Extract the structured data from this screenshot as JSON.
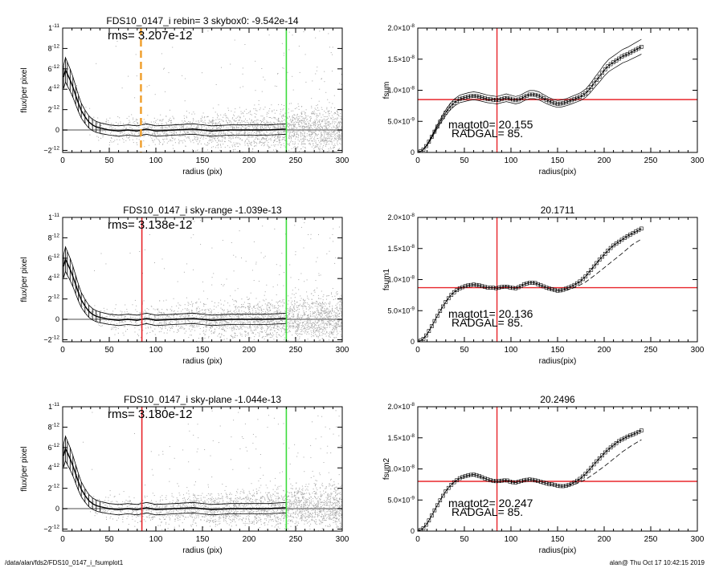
{
  "footer": {
    "path": "/data/alan/fds2/FDS10_0147_i_fsumplot1",
    "stamp": "alan@  Thu Oct 17 10:42:15 2019"
  },
  "colors": {
    "scatter": "#a8a8a8",
    "red": "#e8262b",
    "green": "#3ddc3d",
    "orange": "#f0a030"
  },
  "chart_data": [
    {
      "type": "scatter",
      "title": "FDS10_0147_i rebin= 3    skybox0: -9.542e-14",
      "annotation": "rms= 3.207e-12",
      "xlabel": "radius (pix)",
      "ylabel": "flux/per pixel",
      "xlim": [
        0,
        300
      ],
      "ylim": [
        -2.2e-12,
        1e-11
      ],
      "xticks": [
        0,
        50,
        100,
        150,
        200,
        250,
        300
      ],
      "yticks": [
        {
          "v": -2e-12,
          "m": "−2",
          "e": "-12"
        },
        {
          "v": 0,
          "m": "0",
          "e": ""
        },
        {
          "v": 2e-12,
          "m": "2",
          "e": "-12"
        },
        {
          "v": 4e-12,
          "m": "4",
          "e": "-12"
        },
        {
          "v": 6e-12,
          "m": "6",
          "e": "-12"
        },
        {
          "v": 8e-12,
          "m": "8",
          "e": "-12"
        },
        {
          "v": 1e-11,
          "m": "1",
          "e": "-11"
        }
      ],
      "profile": {
        "r": [
          1,
          3,
          5,
          8,
          11,
          14,
          17,
          20,
          24,
          28,
          32,
          36,
          40,
          45,
          50,
          60,
          70,
          80,
          90,
          100,
          120,
          140,
          160,
          180,
          200,
          220,
          240
        ],
        "f": [
          5.2e-12,
          5.9e-12,
          5.5e-12,
          4.9e-12,
          4.2e-12,
          3.4e-12,
          2.6e-12,
          1.9e-12,
          1.3e-12,
          8e-13,
          5e-13,
          3e-13,
          2e-13,
          1e-13,
          0,
          -1e-13,
          0,
          -1e-13,
          1e-13,
          -1e-13,
          0,
          1e-13,
          -1e-13,
          0,
          0,
          0,
          1e-13
        ]
      },
      "vlines": [
        {
          "x": 84,
          "color": "orange",
          "style": "dashed"
        },
        {
          "x": 240,
          "color": "green",
          "style": "solid"
        }
      ]
    },
    {
      "type": "line",
      "title": "",
      "ylabel": "fsum",
      "xlabel": "radius(pix)",
      "annotation_lines": [
        "magtot0=  20.155",
        "RADGAL=     85."
      ],
      "xlim": [
        0,
        300
      ],
      "ylim": [
        0,
        2e-08
      ],
      "xticks": [
        0,
        50,
        100,
        150,
        200,
        250,
        300
      ],
      "yticks": [
        {
          "v": 0,
          "m": "0",
          "e": ""
        },
        {
          "v": 5e-09,
          "m": "5.0×10",
          "e": "-9"
        },
        {
          "v": 1e-08,
          "m": "1.0×10",
          "e": "-8"
        },
        {
          "v": 1.5e-08,
          "m": "1.5×10",
          "e": "-8"
        },
        {
          "v": 2e-08,
          "m": "2.0×10",
          "e": "-8"
        }
      ],
      "curve": {
        "r": [
          0,
          5,
          10,
          15,
          20,
          25,
          30,
          35,
          40,
          45,
          50,
          55,
          60,
          65,
          70,
          75,
          80,
          85,
          90,
          95,
          100,
          105,
          110,
          115,
          120,
          125,
          130,
          135,
          140,
          145,
          150,
          155,
          160,
          165,
          170,
          175,
          180,
          185,
          190,
          195,
          200,
          205,
          210,
          215,
          220,
          225,
          230,
          235,
          240
        ],
        "f": [
          0,
          3e-10,
          1.2e-09,
          2.5e-09,
          3.9e-09,
          5.2e-09,
          6.4e-09,
          7.4e-09,
          8.1e-09,
          8.6e-09,
          8.8e-09,
          9e-09,
          9.1e-09,
          9e-09,
          8.8e-09,
          8.6e-09,
          8.5e-09,
          8.4e-09,
          8.6e-09,
          8.8e-09,
          8.6e-09,
          8.4e-09,
          8.6e-09,
          9e-09,
          9.3e-09,
          9.3e-09,
          9.1e-09,
          8.7e-09,
          8.3e-09,
          8e-09,
          7.8e-09,
          7.9e-09,
          8.1e-09,
          8.4e-09,
          8.7e-09,
          9e-09,
          9.5e-09,
          1.03e-08,
          1.13e-08,
          1.22e-08,
          1.32e-08,
          1.4e-08,
          1.45e-08,
          1.5e-08,
          1.55e-08,
          1.58e-08,
          1.62e-08,
          1.66e-08,
          1.7e-08
        ]
      },
      "envelope": 0.07,
      "hline": 8.5e-09,
      "vline": 85
    },
    {
      "type": "scatter",
      "title": "FDS10_0147_i sky-range -1.039e-13",
      "annotation": "rms= 3.138e-12",
      "xlabel": "radius (pix)",
      "ylabel": "flux/per pixel",
      "xlim": [
        0,
        300
      ],
      "ylim": [
        -2.2e-12,
        1e-11
      ],
      "xticks": [
        0,
        50,
        100,
        150,
        200,
        250,
        300
      ],
      "yticks": [
        {
          "v": -2e-12,
          "m": "−2",
          "e": "-12"
        },
        {
          "v": 0,
          "m": "0",
          "e": ""
        },
        {
          "v": 2e-12,
          "m": "2",
          "e": "-12"
        },
        {
          "v": 4e-12,
          "m": "4",
          "e": "-12"
        },
        {
          "v": 6e-12,
          "m": "6",
          "e": "-12"
        },
        {
          "v": 8e-12,
          "m": "8",
          "e": "-12"
        },
        {
          "v": 1e-11,
          "m": "1",
          "e": "-11"
        }
      ],
      "profile": {
        "r": [
          1,
          3,
          5,
          8,
          11,
          14,
          17,
          20,
          24,
          28,
          32,
          36,
          40,
          45,
          50,
          60,
          70,
          80,
          90,
          100,
          120,
          140,
          160,
          180,
          200,
          220,
          240
        ],
        "f": [
          5.2e-12,
          5.9e-12,
          5.5e-12,
          4.9e-12,
          4.2e-12,
          3.4e-12,
          2.6e-12,
          1.9e-12,
          1.3e-12,
          8e-13,
          5e-13,
          3e-13,
          2e-13,
          1e-13,
          0,
          -1e-13,
          0,
          -1e-13,
          1e-13,
          -1e-13,
          0,
          1e-13,
          -1e-13,
          0,
          0,
          0,
          1e-13
        ]
      },
      "vlines": [
        {
          "x": 85,
          "color": "red",
          "style": "solid"
        },
        {
          "x": 240,
          "color": "green",
          "style": "solid"
        }
      ]
    },
    {
      "type": "line",
      "title": "20.1711",
      "ylabel": "fsum1",
      "xlabel": "radius(pix)",
      "annotation_lines": [
        "magtot1=  20.136",
        "RADGAL=     85."
      ],
      "xlim": [
        0,
        300
      ],
      "ylim": [
        0,
        2e-08
      ],
      "xticks": [
        0,
        50,
        100,
        150,
        200,
        250,
        300
      ],
      "yticks": [
        {
          "v": 0,
          "m": "0",
          "e": ""
        },
        {
          "v": 5e-09,
          "m": "5.0×10",
          "e": "-9"
        },
        {
          "v": 1e-08,
          "m": "1.0×10",
          "e": "-8"
        },
        {
          "v": 1.5e-08,
          "m": "1.5×10",
          "e": "-8"
        },
        {
          "v": 2e-08,
          "m": "2.0×10",
          "e": "-8"
        }
      ],
      "curve": {
        "r": [
          0,
          5,
          10,
          15,
          20,
          25,
          30,
          35,
          40,
          45,
          50,
          55,
          60,
          65,
          70,
          75,
          80,
          85,
          90,
          95,
          100,
          105,
          110,
          115,
          120,
          125,
          130,
          135,
          140,
          145,
          150,
          155,
          160,
          165,
          170,
          175,
          180,
          185,
          190,
          195,
          200,
          205,
          210,
          215,
          220,
          225,
          230,
          235,
          240
        ],
        "f": [
          0,
          3e-10,
          1.2e-09,
          2.5e-09,
          3.9e-09,
          5.2e-09,
          6.4e-09,
          7.4e-09,
          8.1e-09,
          8.6e-09,
          8.9e-09,
          9.1e-09,
          9.2e-09,
          9.1e-09,
          8.9e-09,
          8.7e-09,
          8.7e-09,
          8.6e-09,
          8.8e-09,
          8.9e-09,
          8.7e-09,
          8.6e-09,
          8.9e-09,
          9.3e-09,
          9.5e-09,
          9.5e-09,
          9.2e-09,
          8.9e-09,
          8.6e-09,
          8.4e-09,
          8.2e-09,
          8.3e-09,
          8.6e-09,
          8.9e-09,
          9.3e-09,
          9.8e-09,
          1.05e-08,
          1.14e-08,
          1.23e-08,
          1.32e-08,
          1.4e-08,
          1.48e-08,
          1.55e-08,
          1.6e-08,
          1.65e-08,
          1.7e-08,
          1.74e-08,
          1.78e-08,
          1.82e-08
        ]
      },
      "dashed": {
        "r": [
          150,
          160,
          170,
          180,
          190,
          200,
          210,
          220,
          230,
          240
        ],
        "f": [
          8.2e-09,
          8.3e-09,
          8.8e-09,
          9.6e-09,
          1.07e-08,
          1.19e-08,
          1.31e-08,
          1.43e-08,
          1.56e-08,
          1.65e-08
        ]
      },
      "hline": 8.7e-09,
      "vline": 85
    },
    {
      "type": "scatter",
      "title": "FDS10_0147_i sky-plane -1.044e-13",
      "annotation": "rms= 3.180e-12",
      "xlabel": "radius (pix)",
      "ylabel": "flux/per pixel",
      "xlim": [
        0,
        300
      ],
      "ylim": [
        -2.2e-12,
        1e-11
      ],
      "xticks": [
        0,
        50,
        100,
        150,
        200,
        250,
        300
      ],
      "yticks": [
        {
          "v": -2e-12,
          "m": "−2",
          "e": "-12"
        },
        {
          "v": 0,
          "m": "0",
          "e": ""
        },
        {
          "v": 2e-12,
          "m": "2",
          "e": "-12"
        },
        {
          "v": 4e-12,
          "m": "4",
          "e": "-12"
        },
        {
          "v": 6e-12,
          "m": "6",
          "e": "-12"
        },
        {
          "v": 8e-12,
          "m": "8",
          "e": "-12"
        },
        {
          "v": 1e-11,
          "m": "1",
          "e": "-11"
        }
      ],
      "profile": {
        "r": [
          1,
          3,
          5,
          8,
          11,
          14,
          17,
          20,
          24,
          28,
          32,
          36,
          40,
          45,
          50,
          60,
          70,
          80,
          90,
          100,
          120,
          140,
          160,
          180,
          200,
          220,
          240
        ],
        "f": [
          5.2e-12,
          5.9e-12,
          5.5e-12,
          4.9e-12,
          4.2e-12,
          3.4e-12,
          2.6e-12,
          1.9e-12,
          1.3e-12,
          8e-13,
          5e-13,
          3e-13,
          2e-13,
          1e-13,
          0,
          -1e-13,
          0,
          -1e-13,
          1e-13,
          -1e-13,
          0,
          1e-13,
          -1e-13,
          0,
          0,
          0,
          1e-13
        ]
      },
      "vlines": [
        {
          "x": 85,
          "color": "red",
          "style": "solid"
        },
        {
          "x": 240,
          "color": "green",
          "style": "solid"
        }
      ]
    },
    {
      "type": "line",
      "title": "20.2496",
      "ylabel": "fsum2",
      "xlabel": "radius(pix)",
      "annotation_lines": [
        "magtot2=  20.247",
        "RADGAL=     85."
      ],
      "xlim": [
        0,
        300
      ],
      "ylim": [
        0,
        2e-08
      ],
      "xticks": [
        0,
        50,
        100,
        150,
        200,
        250,
        300
      ],
      "yticks": [
        {
          "v": 0,
          "m": "0",
          "e": ""
        },
        {
          "v": 5e-09,
          "m": "5.0×10",
          "e": "-9"
        },
        {
          "v": 1e-08,
          "m": "1.0×10",
          "e": "-8"
        },
        {
          "v": 1.5e-08,
          "m": "1.5×10",
          "e": "-8"
        },
        {
          "v": 2e-08,
          "m": "2.0×10",
          "e": "-8"
        }
      ],
      "curve": {
        "r": [
          0,
          5,
          10,
          15,
          20,
          25,
          30,
          35,
          40,
          45,
          50,
          55,
          60,
          65,
          70,
          75,
          80,
          85,
          90,
          95,
          100,
          105,
          110,
          115,
          120,
          125,
          130,
          135,
          140,
          145,
          150,
          155,
          160,
          165,
          170,
          175,
          180,
          185,
          190,
          195,
          200,
          205,
          210,
          215,
          220,
          225,
          230,
          235,
          240
        ],
        "f": [
          0,
          3e-10,
          1.2e-09,
          2.5e-09,
          3.9e-09,
          5.2e-09,
          6.4e-09,
          7.3e-09,
          8e-09,
          8.5e-09,
          8.8e-09,
          9e-09,
          9.1e-09,
          8.9e-09,
          8.6e-09,
          8.3e-09,
          8.1e-09,
          8e-09,
          8.1e-09,
          8.2e-09,
          7.9e-09,
          7.8e-09,
          8e-09,
          8.2e-09,
          8.3e-09,
          8.2e-09,
          8e-09,
          7.8e-09,
          7.6e-09,
          7.5e-09,
          7.3e-09,
          7.2e-09,
          7.3e-09,
          7.6e-09,
          8e-09,
          8.5e-09,
          9.2e-09,
          1e-08,
          1.09e-08,
          1.17e-08,
          1.25e-08,
          1.32e-08,
          1.38e-08,
          1.44e-08,
          1.48e-08,
          1.52e-08,
          1.55e-08,
          1.58e-08,
          1.62e-08
        ]
      },
      "dashed": {
        "r": [
          160,
          170,
          180,
          190,
          200,
          210,
          220,
          230,
          240
        ],
        "f": [
          7.3e-09,
          7.6e-09,
          8.3e-09,
          9.3e-09,
          1.04e-08,
          1.16e-08,
          1.28e-08,
          1.38e-08,
          1.47e-08
        ]
      },
      "hline": 8e-09,
      "vline": 85
    }
  ]
}
